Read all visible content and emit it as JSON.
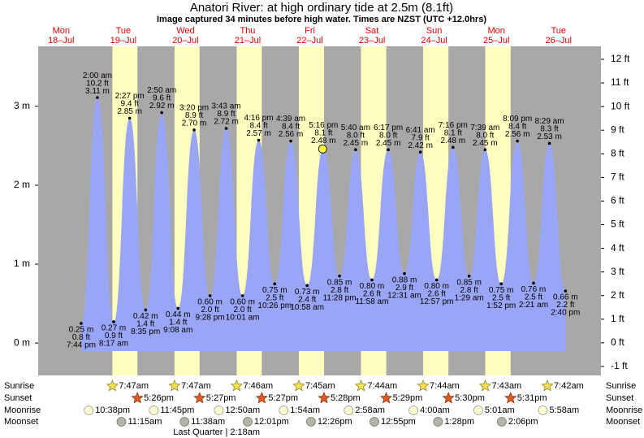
{
  "chart_data": {
    "type": "tide",
    "title": "Anatori River: at high  ordinary tide at 2.5m (8.1ft)",
    "subtitle": "Image captured 34 minutes before high water. Times are NZST (UTC +12.0hrs)",
    "background_color": "#a8a8a8",
    "daylight_color": "#ffffc0",
    "tide_color": "#99a6f5",
    "ylim": [
      -0.41,
      3.76
    ],
    "yticks": [
      {
        "value": 0,
        "label": "0 m"
      },
      {
        "value": 1,
        "label": "1 m"
      },
      {
        "value": 2,
        "label": "2 m"
      },
      {
        "value": 3,
        "label": "3 m"
      }
    ],
    "y2lim": [
      -1.38,
      12.55
    ],
    "y2ticks": [
      {
        "value": -1,
        "label": "-1 ft"
      },
      {
        "value": 0,
        "label": "0 ft"
      },
      {
        "value": 1,
        "label": "1 ft"
      },
      {
        "value": 2,
        "label": "2 ft"
      },
      {
        "value": 3,
        "label": "3 ft"
      },
      {
        "value": 4,
        "label": "4 ft"
      },
      {
        "value": 5,
        "label": "5 ft"
      },
      {
        "value": 6,
        "label": "6 ft"
      },
      {
        "value": 7,
        "label": "7 ft"
      },
      {
        "value": 8,
        "label": "8 ft"
      },
      {
        "value": 9,
        "label": "9 ft"
      },
      {
        "value": 10,
        "label": "10 ft"
      },
      {
        "value": 11,
        "label": "11 ft"
      },
      {
        "value": 12,
        "label": "12 ft"
      }
    ],
    "row_labels": [
      "Sunrise",
      "Sunset",
      "Moonrise",
      "Moonset"
    ],
    "days": [
      {
        "weekday": "Mon",
        "date": "18–Jul",
        "moonrise": "10:38pm",
        "tides": [
          {
            "kind": "low",
            "time": "7:44 pm",
            "value": 0.25,
            "value_label": "0.25 m",
            "ft_label": "0.8 ft"
          }
        ]
      },
      {
        "weekday": "Tue",
        "date": "19–Jul",
        "sunrise": "7:47am",
        "sunset": "5:26pm",
        "moonrise": "11:45pm",
        "moonset": "11:15am",
        "tides": [
          {
            "kind": "high",
            "time": "2:00 am",
            "value": 3.11,
            "value_label": "3.11 m",
            "ft_label": "10.2 ft"
          },
          {
            "kind": "low",
            "time": "8:17 am",
            "value": 0.27,
            "value_label": "0.27 m",
            "ft_label": "0.9 ft"
          },
          {
            "kind": "high",
            "time": "2:27 pm",
            "value": 2.85,
            "value_label": "2.85 m",
            "ft_label": "9.4 ft"
          },
          {
            "kind": "low",
            "time": "8:35 pm",
            "value": 0.42,
            "value_label": "0.42 m",
            "ft_label": "1.4 ft"
          }
        ]
      },
      {
        "weekday": "Wed",
        "date": "20–Jul",
        "sunrise": "7:47am",
        "sunset": "5:27pm",
        "moonset": "11:38am",
        "tides": [
          {
            "kind": "high",
            "time": "2:50 am",
            "value": 2.92,
            "value_label": "2.92 m",
            "ft_label": "9.6 ft"
          },
          {
            "kind": "low",
            "time": "9:08 am",
            "value": 0.44,
            "value_label": "0.44 m",
            "ft_label": "1.4 ft"
          },
          {
            "kind": "high",
            "time": "3:20 pm",
            "value": 2.7,
            "value_label": "2.70 m",
            "ft_label": "8.9 ft"
          },
          {
            "kind": "low",
            "time": "9:28 pm",
            "value": 0.6,
            "value_label": "0.60 m",
            "ft_label": "2.0 ft"
          }
        ]
      },
      {
        "weekday": "Thu",
        "date": "21–Jul",
        "sunrise": "7:46am",
        "sunset": "5:27pm",
        "moonrise": "12:50am",
        "moonset": "12:01pm",
        "moon_phase": "Last Quarter | 2:18am",
        "tides": [
          {
            "kind": "high",
            "time": "3:43 am",
            "value": 2.72,
            "value_label": "2.72 m",
            "ft_label": "8.9 ft"
          },
          {
            "kind": "low",
            "time": "10:01 am",
            "value": 0.6,
            "value_label": "0.60 m",
            "ft_label": "2.0 ft"
          },
          {
            "kind": "high",
            "time": "4:16 pm",
            "value": 2.57,
            "value_label": "2.57 m",
            "ft_label": "8.4 ft"
          },
          {
            "kind": "low",
            "time": "10:26 pm",
            "value": 0.75,
            "value_label": "0.75 m",
            "ft_label": "2.5 ft"
          }
        ]
      },
      {
        "weekday": "Fri",
        "date": "22–Jul",
        "sunrise": "7:45am",
        "sunset": "5:28pm",
        "moonrise": "1:54am",
        "moonset": "12:26pm",
        "tides": [
          {
            "kind": "high",
            "time": "4:39 am",
            "value": 2.56,
            "value_label": "2.56 m",
            "ft_label": "8.4 ft"
          },
          {
            "kind": "low",
            "time": "10:58 am",
            "value": 0.73,
            "value_label": "0.73 m",
            "ft_label": "2.4 ft"
          },
          {
            "kind": "high",
            "time": "5:16 pm",
            "value": 2.48,
            "value_label": "2.48 m",
            "ft_label": "8.1 ft"
          },
          {
            "kind": "low",
            "time": "11:28 pm",
            "value": 0.85,
            "value_label": "0.85 m",
            "ft_label": "2.8 ft"
          }
        ]
      },
      {
        "weekday": "Sat",
        "date": "23–Jul",
        "sunrise": "7:44am",
        "sunset": "5:29pm",
        "moonrise": "2:58am",
        "moonset": "12:55pm",
        "tides": [
          {
            "kind": "high",
            "time": "5:40 am",
            "value": 2.45,
            "value_label": "2.45 m",
            "ft_label": "8.0 ft"
          },
          {
            "kind": "low",
            "time": "11:58 am",
            "value": 0.8,
            "value_label": "0.80 m",
            "ft_label": "2.6 ft"
          },
          {
            "kind": "high",
            "time": "6:17 pm",
            "value": 2.45,
            "value_label": "2.45 m",
            "ft_label": "8.0 ft"
          }
        ]
      },
      {
        "weekday": "Sun",
        "date": "24–Jul",
        "sunrise": "7:44am",
        "sunset": "5:30pm",
        "moonrise": "4:00am",
        "moonset": "1:28pm",
        "tides": [
          {
            "kind": "low",
            "time": "12:31 am",
            "value": 0.88,
            "value_label": "0.88 m",
            "ft_label": "2.9 ft"
          },
          {
            "kind": "high",
            "time": "6:41 am",
            "value": 2.42,
            "value_label": "2.42 m",
            "ft_label": "7.9 ft"
          },
          {
            "kind": "low",
            "time": "12:57 pm",
            "value": 0.8,
            "value_label": "0.80 m",
            "ft_label": "2.6 ft"
          },
          {
            "kind": "high",
            "time": "7:16 pm",
            "value": 2.48,
            "value_label": "2.48 m",
            "ft_label": "8.1 ft"
          }
        ]
      },
      {
        "weekday": "Mon",
        "date": "25–Jul",
        "sunrise": "7:43am",
        "sunset": "5:31pm",
        "moonrise": "5:01am",
        "moonset": "2:06pm",
        "tides": [
          {
            "kind": "low",
            "time": "1:29 am",
            "value": 0.85,
            "value_label": "0.85 m",
            "ft_label": "2.8 ft"
          },
          {
            "kind": "high",
            "time": "7:39 am",
            "value": 2.45,
            "value_label": "2.45 m",
            "ft_label": "8.0 ft"
          },
          {
            "kind": "low",
            "time": "1:52 pm",
            "value": 0.75,
            "value_label": "0.75 m",
            "ft_label": "2.5 ft"
          },
          {
            "kind": "high",
            "time": "8:09 pm",
            "value": 2.56,
            "value_label": "2.56 m",
            "ft_label": "8.4 ft"
          }
        ]
      },
      {
        "weekday": "Tue",
        "date": "26–Jul",
        "sunrise": "7:42am",
        "moonrise": "5:58am",
        "tides": [
          {
            "kind": "low",
            "time": "2:21 am",
            "value": 0.76,
            "value_label": "0.76 m",
            "ft_label": "2.5 ft"
          },
          {
            "kind": "high",
            "time": "8:29 am",
            "value": 2.53,
            "value_label": "2.53 m",
            "ft_label": "8.3 ft"
          },
          {
            "kind": "low",
            "time": "2:40 pm",
            "value": 0.66,
            "value_label": "0.66 m",
            "ft_label": "2.2 ft"
          }
        ]
      }
    ]
  }
}
